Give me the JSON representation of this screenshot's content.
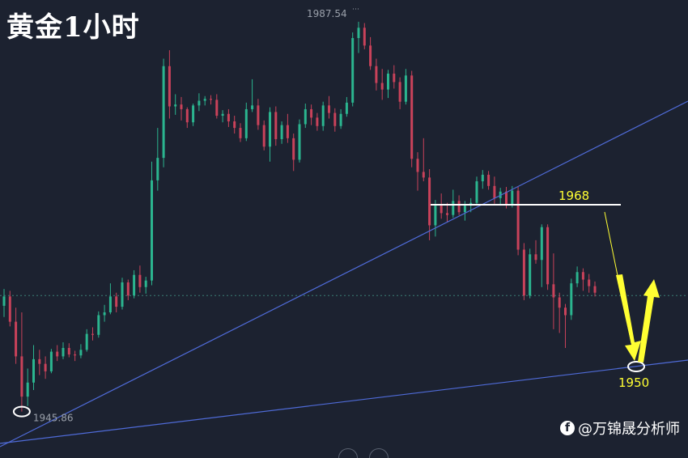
{
  "title": "黄金1小时",
  "watermark": {
    "icon": "facebook-icon",
    "text": "@万锦晟分析师"
  },
  "colors": {
    "background": "#1c2230",
    "up": "#c9425a",
    "down": "#2bb58f",
    "trendline": "#4f6bd8",
    "annotation": "#ffff33",
    "level_line": "#ffffff",
    "price_line": "#3a7f75"
  },
  "chart_data": {
    "type": "candlestick",
    "symbol": "黄金",
    "timeframe": "1小时",
    "ylim": [
      1942.5,
      1989.0
    ],
    "high_label": "1987.54",
    "low_label": "1945.86",
    "current_price_dotted": 1958.3,
    "resistance": {
      "label": "1968",
      "value": 1968
    },
    "target": {
      "label": "1950",
      "value": 1950
    },
    "candles": [
      [
        1957.2,
        1959.0,
        1956.0,
        1958.2
      ],
      [
        1958.2,
        1958.8,
        1955.0,
        1955.5
      ],
      [
        1955.5,
        1957.0,
        1951.0,
        1951.8
      ],
      [
        1951.8,
        1956.5,
        1945.9,
        1947.5
      ],
      [
        1947.5,
        1950.5,
        1946.5,
        1949.0
      ],
      [
        1949.0,
        1953.0,
        1948.2,
        1951.5
      ],
      [
        1951.5,
        1952.5,
        1949.8,
        1951.0
      ],
      [
        1951.0,
        1951.8,
        1949.4,
        1950.2
      ],
      [
        1950.2,
        1952.6,
        1950.0,
        1952.3
      ],
      [
        1952.3,
        1953.0,
        1951.3,
        1951.8
      ],
      [
        1951.8,
        1953.3,
        1951.5,
        1952.7
      ],
      [
        1952.7,
        1953.2,
        1951.7,
        1952.0
      ],
      [
        1952.0,
        1952.4,
        1951.3,
        1951.9
      ],
      [
        1951.9,
        1953.1,
        1951.6,
        1952.5
      ],
      [
        1952.5,
        1954.7,
        1952.3,
        1954.2
      ],
      [
        1954.2,
        1954.9,
        1953.5,
        1954.1
      ],
      [
        1954.1,
        1956.6,
        1953.8,
        1956.2
      ],
      [
        1956.2,
        1957.3,
        1955.5,
        1956.5
      ],
      [
        1956.5,
        1959.6,
        1956.3,
        1958.2
      ],
      [
        1958.2,
        1958.6,
        1956.5,
        1957.1
      ],
      [
        1957.1,
        1960.2,
        1956.8,
        1959.7
      ],
      [
        1959.7,
        1960.0,
        1957.8,
        1958.3
      ],
      [
        1958.3,
        1961.0,
        1958.0,
        1960.5
      ],
      [
        1960.5,
        1961.5,
        1958.6,
        1959.2
      ],
      [
        1959.2,
        1960.3,
        1958.5,
        1959.9
      ],
      [
        1959.9,
        1972.6,
        1959.4,
        1970.6
      ],
      [
        1970.6,
        1976.2,
        1969.5,
        1973.0
      ],
      [
        1973.0,
        1983.6,
        1972.0,
        1982.8
      ],
      [
        1982.8,
        1984.5,
        1977.2,
        1978.5
      ],
      [
        1978.5,
        1979.8,
        1977.6,
        1978.7
      ],
      [
        1978.7,
        1979.5,
        1977.0,
        1978.2
      ],
      [
        1978.2,
        1978.4,
        1976.2,
        1976.8
      ],
      [
        1976.8,
        1978.8,
        1976.4,
        1978.6
      ],
      [
        1978.6,
        1979.9,
        1978.0,
        1979.1
      ],
      [
        1979.1,
        1979.6,
        1978.6,
        1979.3
      ],
      [
        1979.3,
        1979.7,
        1978.7,
        1979.2
      ],
      [
        1979.2,
        1979.8,
        1977.2,
        1977.5
      ],
      [
        1977.5,
        1978.1,
        1976.8,
        1977.7
      ],
      [
        1977.7,
        1978.2,
        1976.3,
        1976.9
      ],
      [
        1976.9,
        1977.5,
        1975.6,
        1976.2
      ],
      [
        1976.2,
        1976.7,
        1974.7,
        1975.1
      ],
      [
        1975.1,
        1978.9,
        1974.8,
        1978.2
      ],
      [
        1978.2,
        1981.4,
        1977.9,
        1978.6
      ],
      [
        1978.6,
        1979.3,
        1976.0,
        1976.5
      ],
      [
        1976.5,
        1977.0,
        1973.8,
        1974.2
      ],
      [
        1974.2,
        1978.4,
        1972.6,
        1977.9
      ],
      [
        1977.9,
        1978.5,
        1974.3,
        1975.0
      ],
      [
        1975.0,
        1976.9,
        1974.5,
        1976.5
      ],
      [
        1976.5,
        1977.7,
        1974.6,
        1975.1
      ],
      [
        1975.1,
        1975.6,
        1971.6,
        1972.8
      ],
      [
        1972.8,
        1977.1,
        1972.5,
        1976.6
      ],
      [
        1976.6,
        1978.8,
        1976.2,
        1978.2
      ],
      [
        1978.2,
        1978.7,
        1976.5,
        1977.3
      ],
      [
        1977.3,
        1977.8,
        1975.9,
        1976.4
      ],
      [
        1976.4,
        1979.0,
        1975.9,
        1978.6
      ],
      [
        1978.6,
        1979.6,
        1977.2,
        1977.8
      ],
      [
        1977.8,
        1978.3,
        1975.8,
        1976.4
      ],
      [
        1976.4,
        1978.2,
        1976.1,
        1977.7
      ],
      [
        1977.7,
        1979.5,
        1977.4,
        1978.9
      ],
      [
        1978.9,
        1986.4,
        1978.5,
        1985.8
      ],
      [
        1985.8,
        1987.54,
        1984.2,
        1986.9
      ],
      [
        1986.9,
        1987.4,
        1984.6,
        1985.0
      ],
      [
        1985.0,
        1985.9,
        1982.4,
        1982.8
      ],
      [
        1982.8,
        1983.6,
        1980.2,
        1981.0
      ],
      [
        1981.0,
        1982.5,
        1979.2,
        1980.3
      ],
      [
        1980.3,
        1982.4,
        1979.4,
        1982.0
      ],
      [
        1982.0,
        1982.9,
        1980.4,
        1981.1
      ],
      [
        1981.1,
        1981.6,
        1978.2,
        1979.0
      ],
      [
        1979.0,
        1982.5,
        1978.7,
        1981.8
      ],
      [
        1981.8,
        1982.3,
        1972.0,
        1972.9
      ],
      [
        1972.9,
        1973.6,
        1969.5,
        1971.5
      ],
      [
        1971.5,
        1975.1,
        1970.5,
        1970.9
      ],
      [
        1970.9,
        1971.8,
        1964.2,
        1965.8
      ],
      [
        1965.8,
        1968.5,
        1964.6,
        1967.9
      ],
      [
        1967.9,
        1969.2,
        1966.5,
        1967.1
      ],
      [
        1967.1,
        1968.2,
        1966.1,
        1966.9
      ],
      [
        1966.9,
        1969.6,
        1966.6,
        1968.4
      ],
      [
        1968.4,
        1969.0,
        1966.9,
        1967.2
      ],
      [
        1967.2,
        1968.4,
        1966.3,
        1967.9
      ],
      [
        1967.9,
        1968.7,
        1967.2,
        1968.2
      ],
      [
        1968.2,
        1971.0,
        1967.9,
        1970.5
      ],
      [
        1970.5,
        1971.7,
        1969.7,
        1971.2
      ],
      [
        1971.2,
        1971.6,
        1969.6,
        1970.0
      ],
      [
        1970.0,
        1971.0,
        1968.1,
        1968.7
      ],
      [
        1968.7,
        1969.8,
        1967.9,
        1969.4
      ],
      [
        1969.4,
        1969.9,
        1967.6,
        1968.0
      ],
      [
        1968.0,
        1970.0,
        1967.7,
        1969.5
      ],
      [
        1969.5,
        1969.9,
        1962.6,
        1963.2
      ],
      [
        1963.2,
        1963.9,
        1957.8,
        1958.3
      ],
      [
        1958.3,
        1963.3,
        1958.0,
        1962.7
      ],
      [
        1962.7,
        1964.2,
        1961.7,
        1962.1
      ],
      [
        1962.1,
        1965.9,
        1959.2,
        1965.6
      ],
      [
        1965.6,
        1965.9,
        1958.9,
        1959.5
      ],
      [
        1959.5,
        1962.8,
        1954.7,
        1958.1
      ],
      [
        1958.1,
        1958.6,
        1954.3,
        1957.0
      ],
      [
        1957.0,
        1957.4,
        1952.7,
        1956.2
      ],
      [
        1956.2,
        1960.1,
        1955.7,
        1959.6
      ],
      [
        1959.6,
        1961.4,
        1959.2,
        1960.8
      ],
      [
        1960.8,
        1961.2,
        1958.8,
        1960.0
      ],
      [
        1960.0,
        1960.6,
        1958.6,
        1959.3
      ],
      [
        1959.3,
        1959.8,
        1958.2,
        1958.6
      ]
    ]
  }
}
